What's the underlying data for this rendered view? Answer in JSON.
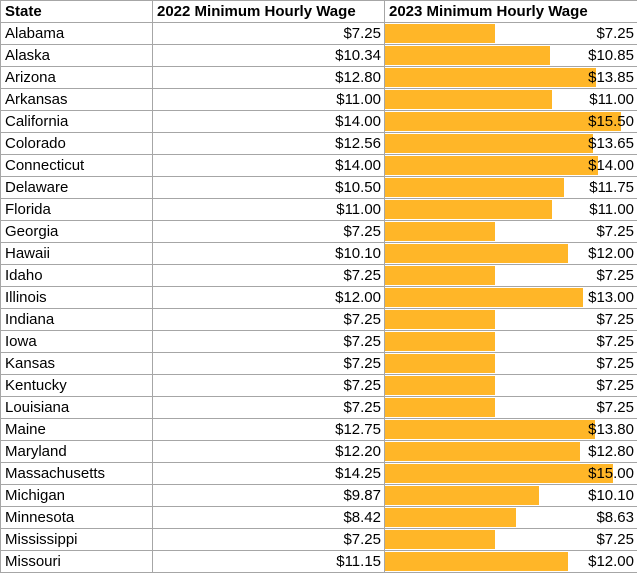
{
  "colors": {
    "data_bar_fill": "#FFB628",
    "gridline": "#A6A6A6",
    "text": "#000000",
    "background": "#FFFFFF"
  },
  "chart_data": {
    "type": "table",
    "columns": [
      "State",
      "2022 Minimum Hourly Wage",
      "2023 Minimum Hourly Wage"
    ],
    "currency_prefix": "$",
    "rows": [
      [
        "Alabama",
        7.25,
        7.25
      ],
      [
        "Alaska",
        10.34,
        10.85
      ],
      [
        "Arizona",
        12.8,
        13.85
      ],
      [
        "Arkansas",
        11.0,
        11.0
      ],
      [
        "California",
        14.0,
        15.5
      ],
      [
        "Colorado",
        12.56,
        13.65
      ],
      [
        "Connecticut",
        14.0,
        14.0
      ],
      [
        "Delaware",
        10.5,
        11.75
      ],
      [
        "Florida",
        11.0,
        11.0
      ],
      [
        "Georgia",
        7.25,
        7.25
      ],
      [
        "Hawaii",
        10.1,
        12.0
      ],
      [
        "Idaho",
        7.25,
        7.25
      ],
      [
        "Illinois",
        12.0,
        13.0
      ],
      [
        "Indiana",
        7.25,
        7.25
      ],
      [
        "Iowa",
        7.25,
        7.25
      ],
      [
        "Kansas",
        7.25,
        7.25
      ],
      [
        "Kentucky",
        7.25,
        7.25
      ],
      [
        "Louisiana",
        7.25,
        7.25
      ],
      [
        "Maine",
        12.75,
        13.8
      ],
      [
        "Maryland",
        12.2,
        12.8
      ],
      [
        "Massachusetts",
        14.25,
        15.0
      ],
      [
        "Michigan",
        9.87,
        10.1
      ],
      [
        "Minnesota",
        8.42,
        8.63
      ],
      [
        "Mississippi",
        7.25,
        7.25
      ],
      [
        "Missouri",
        11.15,
        12.0
      ]
    ],
    "data_bars": {
      "column": "2023 Minimum Hourly Wage",
      "color": "#FFB628",
      "scale_min": 0,
      "scale_max": 15.5,
      "max_fill_percent": 93.6
    }
  }
}
